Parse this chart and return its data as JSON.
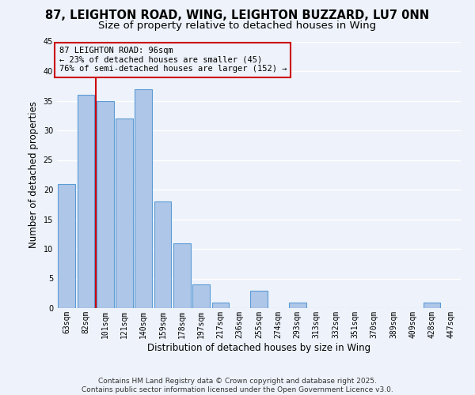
{
  "title_line1": "87, LEIGHTON ROAD, WING, LEIGHTON BUZZARD, LU7 0NN",
  "title_line2": "Size of property relative to detached houses in Wing",
  "xlabel": "Distribution of detached houses by size in Wing",
  "ylabel": "Number of detached properties",
  "categories": [
    "63sqm",
    "82sqm",
    "101sqm",
    "121sqm",
    "140sqm",
    "159sqm",
    "178sqm",
    "197sqm",
    "217sqm",
    "236sqm",
    "255sqm",
    "274sqm",
    "293sqm",
    "313sqm",
    "332sqm",
    "351sqm",
    "370sqm",
    "389sqm",
    "409sqm",
    "428sqm",
    "447sqm"
  ],
  "values": [
    21,
    36,
    35,
    32,
    37,
    18,
    11,
    4,
    1,
    0,
    3,
    0,
    1,
    0,
    0,
    0,
    0,
    0,
    0,
    1,
    0
  ],
  "bar_color": "#aec6e8",
  "bar_edge_color": "#5b9bd5",
  "bg_color": "#eef3fb",
  "grid_color": "#ffffff",
  "vline_x": 1.5,
  "vline_color": "#cc0000",
  "annotation_text": "87 LEIGHTON ROAD: 96sqm\n← 23% of detached houses are smaller (45)\n76% of semi-detached houses are larger (152) →",
  "annotation_box_color": "#cc0000",
  "ylim": [
    0,
    45
  ],
  "yticks": [
    0,
    5,
    10,
    15,
    20,
    25,
    30,
    35,
    40,
    45
  ],
  "footer_line1": "Contains HM Land Registry data © Crown copyright and database right 2025.",
  "footer_line2": "Contains public sector information licensed under the Open Government Licence v3.0.",
  "title_fontsize": 10.5,
  "subtitle_fontsize": 9.5,
  "axis_label_fontsize": 8.5,
  "tick_fontsize": 7,
  "annotation_fontsize": 7.5,
  "footer_fontsize": 6.5
}
